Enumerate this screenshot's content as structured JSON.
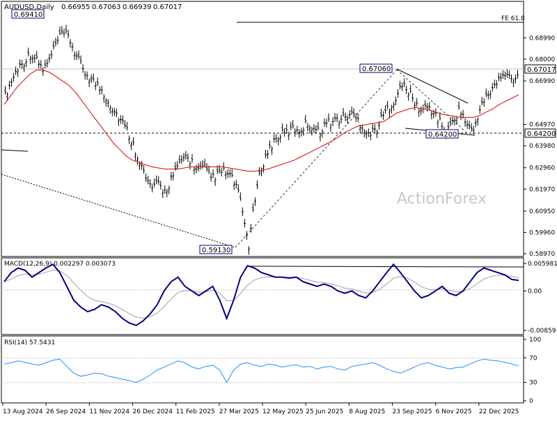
{
  "header": {
    "symbol": "AUDUSD,Daily",
    "open": "0.66955",
    "high": "0.67063",
    "low": "0.66939",
    "close": "0.67017"
  },
  "watermark": "ActionForex",
  "colors": {
    "price_bars": "#000000",
    "ma_line": "#e00000",
    "macd_line": "#00007f",
    "signal_line": "#a0a0a0",
    "rsi_line": "#1e90ff",
    "watermark": "#c8c8c8",
    "label_border": "#00007f"
  },
  "chart_data": [
    {
      "type": "bar",
      "name": "price",
      "y_axis_ticks": [
        "0.68990",
        "0.68000",
        "0.66990",
        "0.64970",
        "0.63980",
        "0.62960",
        "0.61970",
        "0.60950",
        "0.59960",
        "0.58970"
      ],
      "ylim": [
        0.5897,
        0.701
      ],
      "x_axis_dates": [
        "13 Aug 2024",
        "26 Sep 2024",
        "11 Nov 2024",
        "26 Dec 2024",
        "11 Feb 2025",
        "27 Mar 2025",
        "12 May 2025",
        "25 Jun 2025",
        "8 Aug 2025",
        "23 Sep 2025",
        "6 Nov 2025",
        "22 Dec 2025"
      ],
      "closes": [
        0.663,
        0.67,
        0.676,
        0.679,
        0.683,
        0.679,
        0.675,
        0.68,
        0.688,
        0.692,
        0.69,
        0.682,
        0.676,
        0.672,
        0.669,
        0.666,
        0.661,
        0.656,
        0.652,
        0.647,
        0.64,
        0.633,
        0.624,
        0.62,
        0.622,
        0.618,
        0.625,
        0.63,
        0.635,
        0.633,
        0.628,
        0.63,
        0.625,
        0.626,
        0.628,
        0.626,
        0.622,
        0.61,
        0.593,
        0.615,
        0.63,
        0.637,
        0.642,
        0.645,
        0.646,
        0.648,
        0.647,
        0.65,
        0.649,
        0.646,
        0.65,
        0.651,
        0.652,
        0.653,
        0.655,
        0.652,
        0.648,
        0.645,
        0.648,
        0.654,
        0.658,
        0.662,
        0.668,
        0.665,
        0.659,
        0.656,
        0.658,
        0.655,
        0.65,
        0.646,
        0.652,
        0.657,
        0.65,
        0.646,
        0.656,
        0.662,
        0.666,
        0.67,
        0.673,
        0.671,
        0.672
      ],
      "ma_values": [
        0.659,
        0.663,
        0.667,
        0.67,
        0.673,
        0.675,
        0.675,
        0.674,
        0.672,
        0.67,
        0.668,
        0.665,
        0.661,
        0.657,
        0.653,
        0.649,
        0.645,
        0.641,
        0.638,
        0.635,
        0.633,
        0.632,
        0.631,
        0.63,
        0.6295,
        0.629,
        0.629,
        0.629,
        0.6295,
        0.63,
        0.63,
        0.63,
        0.63,
        0.63,
        0.63,
        0.6295,
        0.629,
        0.6285,
        0.628,
        0.628,
        0.6285,
        0.629,
        0.63,
        0.631,
        0.632,
        0.633,
        0.6345,
        0.636,
        0.6375,
        0.639,
        0.6405,
        0.642,
        0.644,
        0.646,
        0.6475,
        0.649,
        0.6495,
        0.65,
        0.6505,
        0.651,
        0.653,
        0.655,
        0.656,
        0.657,
        0.6575,
        0.657,
        0.6565,
        0.6555,
        0.6545,
        0.654,
        0.6535,
        0.653,
        0.653,
        0.653,
        0.654,
        0.6555,
        0.657,
        0.659,
        0.6605,
        0.662,
        0.6635
      ],
      "price_labels": [
        {
          "text": "0.69410",
          "value": 0.6941,
          "date_index": 16
        },
        {
          "text": "0.67060",
          "value": 0.6706,
          "date_index": 210
        },
        {
          "text": "0.64200",
          "value": 0.642,
          "date_index": 245
        },
        {
          "text": "0.59130",
          "value": 0.5913,
          "date_index": 131
        }
      ],
      "fe_label": "FE 61.8",
      "fe_value": 0.6999,
      "current_price": "0.67017",
      "support_label": "0.64200"
    },
    {
      "type": "line",
      "name": "macd",
      "title": "MACD(12,26,9) 0.002297 0.003073",
      "y_axis_ticks": [
        "0.005981",
        "0.00",
        "-0.00859"
      ],
      "ylim": [
        -0.00859,
        0.005981
      ],
      "macd_values": [
        0.002,
        0.004,
        0.005,
        0.0045,
        0.003,
        0.004,
        0.005,
        0.0058,
        0.004,
        0.001,
        -0.002,
        -0.0035,
        -0.0045,
        -0.004,
        -0.003,
        -0.0035,
        -0.0045,
        -0.006,
        -0.007,
        -0.0075,
        -0.0065,
        -0.005,
        -0.003,
        0.0,
        0.002,
        0.003,
        0.001,
        0.0,
        -0.001,
        0.0,
        0.001,
        -0.002,
        -0.006,
        -0.002,
        0.003,
        0.0055,
        0.005,
        0.004,
        0.0035,
        0.003,
        0.003,
        0.0028,
        0.003,
        0.002,
        0.0015,
        0.001,
        0.0015,
        0.001,
        0.0,
        -0.0005,
        0.0,
        -0.001,
        -0.0015,
        0.0,
        0.002,
        0.004,
        0.0058,
        0.004,
        0.002,
        0.0,
        -0.0015,
        -0.001,
        0.0,
        0.001,
        -0.0005,
        -0.001,
        0.0,
        0.002,
        0.004,
        0.005,
        0.0045,
        0.004,
        0.0035,
        0.0025,
        0.0023
      ]
    },
    {
      "type": "line",
      "name": "rsi",
      "title": "RSI(14) 57.5431",
      "y_axis_ticks": [
        "100",
        "70",
        "30",
        "0"
      ],
      "ylim": [
        0,
        100
      ],
      "rsi_values": [
        60,
        62,
        65,
        63,
        60,
        58,
        62,
        66,
        68,
        56,
        45,
        40,
        42,
        45,
        44,
        40,
        38,
        35,
        33,
        30,
        35,
        42,
        50,
        55,
        60,
        65,
        62,
        55,
        52,
        56,
        58,
        50,
        30,
        50,
        60,
        62,
        58,
        56,
        60,
        58,
        55,
        57,
        59,
        55,
        56,
        52,
        55,
        56,
        52,
        50,
        56,
        58,
        60,
        62,
        58,
        52,
        48,
        45,
        50,
        55,
        60,
        62,
        58,
        55,
        52,
        54,
        55,
        60,
        65,
        68,
        66,
        65,
        63,
        60,
        57
      ]
    }
  ]
}
